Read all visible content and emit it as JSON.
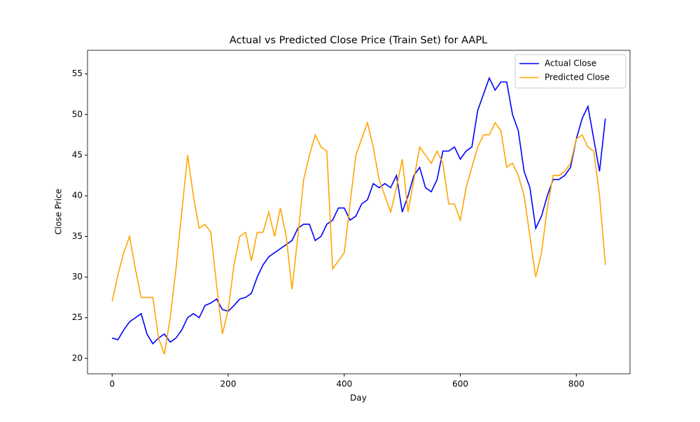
{
  "chart_data": {
    "type": "line",
    "title": "Actual vs Predicted Close Price (Train Set) for AAPL",
    "x_label": "Day",
    "y_label": "Close Price",
    "x": [
      0,
      10,
      20,
      30,
      40,
      50,
      60,
      70,
      80,
      90,
      100,
      110,
      120,
      130,
      140,
      150,
      160,
      170,
      180,
      190,
      200,
      210,
      220,
      230,
      240,
      250,
      260,
      270,
      280,
      290,
      300,
      310,
      320,
      330,
      340,
      350,
      360,
      370,
      380,
      390,
      400,
      410,
      420,
      430,
      440,
      450,
      460,
      470,
      480,
      490,
      500,
      510,
      520,
      530,
      540,
      550,
      560,
      570,
      580,
      590,
      600,
      610,
      620,
      630,
      640,
      650,
      660,
      670,
      680,
      690,
      700,
      710,
      720,
      730,
      740,
      750,
      760,
      770,
      780,
      790,
      800,
      810,
      820,
      830,
      840,
      850
    ],
    "series": [
      {
        "name": "Actual Close",
        "color": "#0000ff",
        "values": [
          22.5,
          22.3,
          23.5,
          24.5,
          25,
          25.5,
          23,
          21.8,
          22.5,
          23,
          22,
          22.5,
          23.5,
          25,
          25.5,
          25,
          26.5,
          26.8,
          27.3,
          26,
          25.8,
          26.5,
          27.3,
          27.5,
          28,
          30,
          31.5,
          32.5,
          33,
          33.5,
          34,
          34.5,
          36,
          36.5,
          36.5,
          34.5,
          35,
          36.5,
          37,
          38.5,
          38.5,
          37,
          37.5,
          39,
          39.5,
          41.5,
          41,
          41.5,
          41,
          42.5,
          38,
          40,
          42.5,
          43.5,
          41,
          40.5,
          42,
          45.5,
          45.5,
          46,
          44.5,
          45.5,
          46,
          50.5,
          52.5,
          54.5,
          53,
          54,
          54,
          50,
          48,
          43,
          41,
          36,
          37.5,
          40,
          42,
          42,
          42.5,
          43.5,
          47,
          49.5,
          51,
          47,
          43,
          49.5
        ]
      },
      {
        "name": "Predicted Close",
        "color": "#ffa500",
        "values": [
          27,
          30.3,
          33,
          35,
          31,
          27.5,
          27.5,
          27.5,
          22.5,
          20.5,
          25,
          31,
          38,
          45,
          40,
          36,
          36.5,
          35.5,
          29,
          23,
          26,
          31.5,
          35,
          35.5,
          32,
          35.5,
          35.5,
          38,
          35,
          38.5,
          35,
          28.5,
          35,
          42,
          45,
          47.5,
          46,
          45.5,
          31,
          32,
          33,
          39,
          45,
          47,
          49,
          46,
          42,
          40,
          38,
          41,
          44.5,
          38,
          42,
          46,
          45,
          44,
          45.5,
          44,
          39,
          39,
          37,
          41,
          43.5,
          46,
          47.5,
          47.5,
          49,
          48,
          43.5,
          44,
          42.5,
          40,
          35,
          30,
          33,
          38.5,
          42.5,
          42.5,
          43,
          44,
          47,
          47.5,
          46,
          45.5,
          40,
          31.5
        ]
      }
    ],
    "xlim": [
      -42.5,
      892.5
    ],
    "ylim": [
      18.1,
      57.9
    ],
    "xticks": [
      0,
      200,
      400,
      600,
      800
    ],
    "yticks": [
      20,
      25,
      30,
      35,
      40,
      45,
      50,
      55
    ],
    "legend": "upper right"
  }
}
